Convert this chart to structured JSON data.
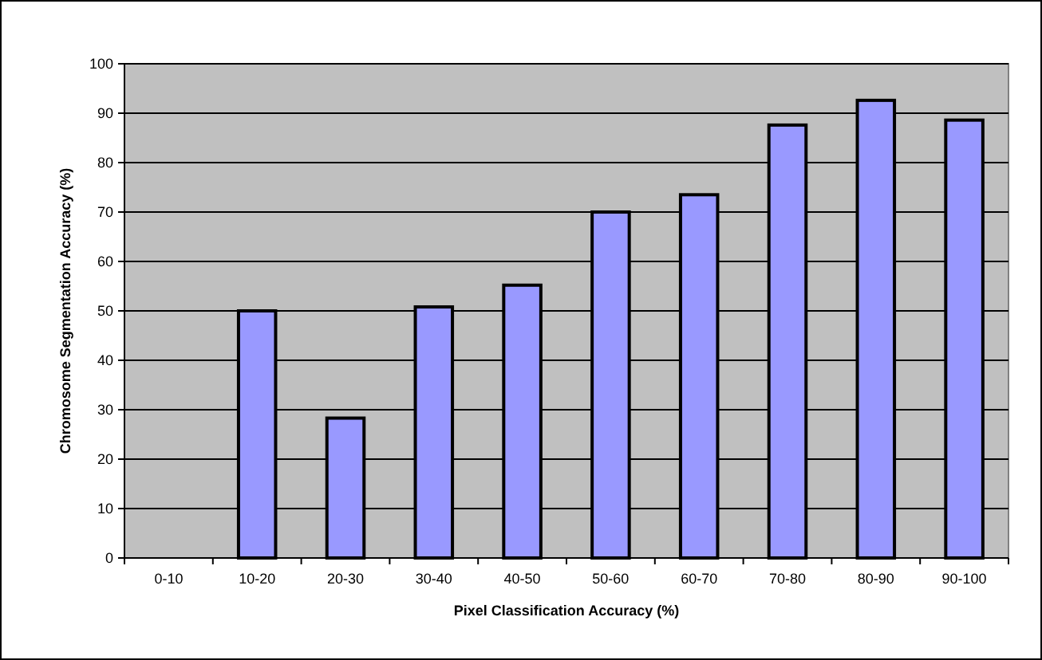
{
  "chart_data": {
    "type": "bar",
    "xlabel": "Pixel Classification Accuracy (%)",
    "ylabel": "Chromosome Segmentation Accuracy (%)",
    "categories": [
      "0-10",
      "10-20",
      "20-30",
      "30-40",
      "40-50",
      "50-60",
      "60-70",
      "70-80",
      "80-90",
      "90-100"
    ],
    "values": [
      0,
      50,
      28.3,
      50.8,
      55.2,
      70,
      73.5,
      87.6,
      92.6,
      88.6
    ],
    "color": "#9999ff",
    "ylim": [
      0,
      100
    ],
    "yticks": [
      0,
      10,
      20,
      30,
      40,
      50,
      60,
      70,
      80,
      90,
      100
    ],
    "grid": "y"
  }
}
